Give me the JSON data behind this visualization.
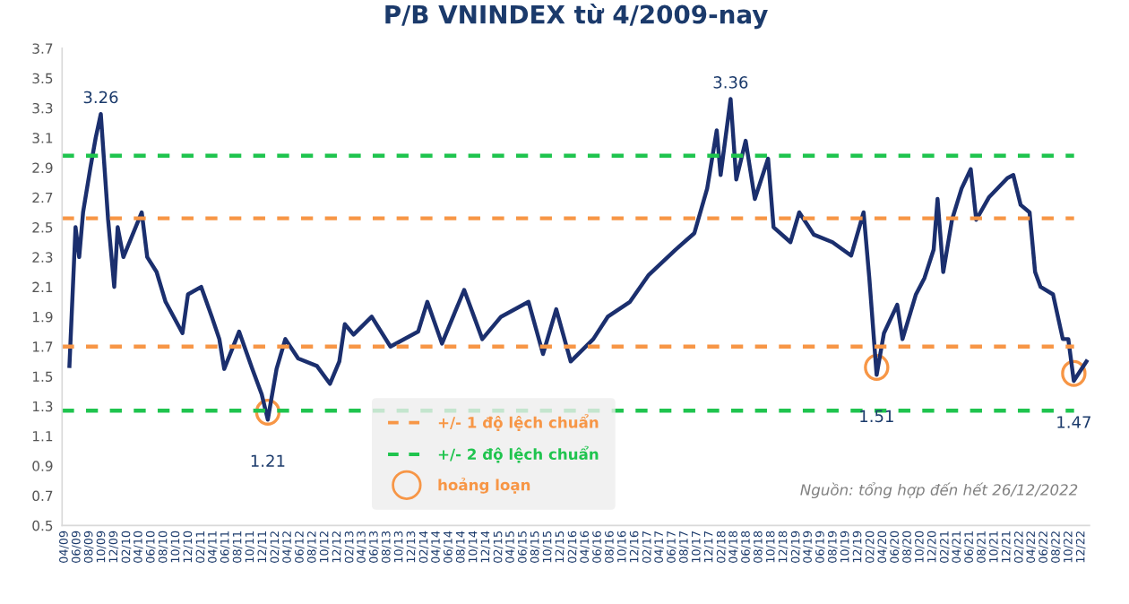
{
  "chart_data": {
    "type": "line",
    "title": "P/B VNINDEX từ 4/2009-nay",
    "x": [
      "2009-04-25",
      "2009-05-25",
      "2009-06-12",
      "2009-07-01",
      "2009-08-06",
      "2009-09-01",
      "2009-09-26",
      "2009-11-01",
      "2009-12-01",
      "2009-12-18",
      "2010-01-15",
      "2010-03-01",
      "2010-04-15",
      "2010-05-12",
      "2010-06-27",
      "2010-08-10",
      "2010-11-01",
      "2010-11-28",
      "2011-02-01",
      "2011-03-25",
      "2011-05-01",
      "2011-05-25",
      "2011-08-06",
      "2011-10-10",
      "2011-11-25",
      "2011-12-25",
      "2012-02-06",
      "2012-03-20",
      "2012-05-22",
      "2012-08-22",
      "2012-10-25",
      "2012-12-10",
      "2013-01-06",
      "2013-02-18",
      "2013-05-18",
      "2013-08-18",
      "2014-01-01",
      "2014-02-15",
      "2014-04-28",
      "2014-08-15",
      "2014-11-12",
      "2015-02-12",
      "2015-06-27",
      "2015-09-06",
      "2015-11-10",
      "2016-01-20",
      "2016-05-10",
      "2016-07-20",
      "2016-11-06",
      "2017-02-06",
      "2017-06-18",
      "2017-09-18",
      "2017-11-20",
      "2018-01-06",
      "2018-01-25",
      "2018-03-15",
      "2018-04-12",
      "2018-05-28",
      "2018-07-12",
      "2018-09-15",
      "2018-10-12",
      "2019-01-03",
      "2019-02-15",
      "2019-04-28",
      "2019-07-28",
      "2019-10-28",
      "2019-12-28",
      "2020-01-25",
      "2020-03-01",
      "2020-04-06",
      "2020-06-10",
      "2020-07-06",
      "2020-09-10",
      "2020-10-22",
      "2020-12-06",
      "2020-12-25",
      "2021-01-22",
      "2021-03-06",
      "2021-04-22",
      "2021-06-06",
      "2021-07-03",
      "2021-09-03",
      "2021-12-03",
      "2022-01-01",
      "2022-02-06",
      "2022-03-22",
      "2022-04-18",
      "2022-05-15",
      "2022-07-15",
      "2022-09-01",
      "2022-09-28",
      "2022-10-25",
      "2022-12-26"
    ],
    "series": [
      {
        "color": "#1b2f6e",
        "values": [
          1.57,
          2.5,
          2.3,
          2.6,
          2.9,
          3.1,
          3.26,
          2.55,
          2.1,
          2.5,
          2.3,
          2.45,
          2.6,
          2.3,
          2.2,
          2.0,
          1.79,
          2.05,
          2.1,
          1.9,
          1.75,
          1.55,
          1.8,
          1.55,
          1.38,
          1.21,
          1.55,
          1.75,
          1.62,
          1.57,
          1.45,
          1.6,
          1.85,
          1.78,
          1.9,
          1.7,
          1.8,
          2.0,
          1.72,
          2.08,
          1.75,
          1.9,
          2.0,
          1.65,
          1.95,
          1.6,
          1.75,
          1.9,
          2.0,
          2.18,
          2.35,
          2.46,
          2.76,
          3.15,
          2.85,
          3.36,
          2.82,
          3.08,
          2.69,
          2.96,
          2.5,
          2.4,
          2.6,
          2.45,
          2.4,
          2.31,
          2.6,
          2.16,
          1.51,
          1.79,
          1.98,
          1.75,
          2.05,
          2.16,
          2.35,
          2.69,
          2.2,
          2.55,
          2.76,
          2.89,
          2.55,
          2.7,
          2.83,
          2.85,
          2.65,
          2.6,
          2.2,
          2.1,
          2.05,
          1.75,
          1.75,
          1.47,
          1.6
        ]
      }
    ],
    "xlim": [
      "2009-03-20",
      "2023-01-10"
    ],
    "ylim": [
      0.5,
      3.7
    ],
    "yticks": [
      {
        "value": 0.5,
        "label": "0.5"
      },
      {
        "value": 0.7,
        "label": "0.7"
      },
      {
        "value": 0.9,
        "label": "0.9"
      },
      {
        "value": 1.1,
        "label": "1.1"
      },
      {
        "value": 1.3,
        "label": "1.3"
      },
      {
        "value": 1.5,
        "label": "1.5"
      },
      {
        "value": 1.7,
        "label": "1.7"
      },
      {
        "value": 1.9,
        "label": "1.9"
      },
      {
        "value": 2.1,
        "label": "2.1"
      },
      {
        "value": 2.3,
        "label": "2.3"
      },
      {
        "value": 2.5,
        "label": "2.5"
      },
      {
        "value": 2.7,
        "label": "2.7"
      },
      {
        "value": 2.9,
        "label": "2.9"
      },
      {
        "value": 3.1,
        "label": "3.1"
      },
      {
        "value": 3.3,
        "label": "3.3"
      },
      {
        "value": 3.5,
        "label": "3.5"
      },
      {
        "value": 3.7,
        "label": "3.7"
      }
    ],
    "xticks": [
      {
        "value": "2009-04",
        "label": "04/09"
      },
      {
        "value": "2009-06",
        "label": "06/09"
      },
      {
        "value": "2009-08",
        "label": "08/09"
      },
      {
        "value": "2009-10",
        "label": "10/09"
      },
      {
        "value": "2009-12",
        "label": "12/09"
      },
      {
        "value": "2010-02",
        "label": "02/10"
      },
      {
        "value": "2010-04",
        "label": "04/10"
      },
      {
        "value": "2010-06",
        "label": "06/10"
      },
      {
        "value": "2010-08",
        "label": "08/10"
      },
      {
        "value": "2010-10",
        "label": "10/10"
      },
      {
        "value": "2010-12",
        "label": "12/10"
      },
      {
        "value": "2011-02",
        "label": "02/11"
      },
      {
        "value": "2011-04",
        "label": "04/11"
      },
      {
        "value": "2011-06",
        "label": "06/11"
      },
      {
        "value": "2011-08",
        "label": "08/11"
      },
      {
        "value": "2011-10",
        "label": "10/11"
      },
      {
        "value": "2011-12",
        "label": "12/11"
      },
      {
        "value": "2012-02",
        "label": "02/12"
      },
      {
        "value": "2012-04",
        "label": "04/12"
      },
      {
        "value": "2012-06",
        "label": "06/12"
      },
      {
        "value": "2012-08",
        "label": "08/12"
      },
      {
        "value": "2012-10",
        "label": "10/12"
      },
      {
        "value": "2012-12",
        "label": "12/12"
      },
      {
        "value": "2013-02",
        "label": "02/13"
      },
      {
        "value": "2013-04",
        "label": "04/13"
      },
      {
        "value": "2013-06",
        "label": "06/13"
      },
      {
        "value": "2013-08",
        "label": "08/13"
      },
      {
        "value": "2013-10",
        "label": "10/13"
      },
      {
        "value": "2013-12",
        "label": "12/13"
      },
      {
        "value": "2014-02",
        "label": "02/14"
      },
      {
        "value": "2014-04",
        "label": "04/14"
      },
      {
        "value": "2014-06",
        "label": "06/14"
      },
      {
        "value": "2014-08",
        "label": "08/14"
      },
      {
        "value": "2014-10",
        "label": "10/14"
      },
      {
        "value": "2014-12",
        "label": "12/14"
      },
      {
        "value": "2015-02",
        "label": "02/15"
      },
      {
        "value": "2015-04",
        "label": "04/15"
      },
      {
        "value": "2015-06",
        "label": "06/15"
      },
      {
        "value": "2015-08",
        "label": "08/15"
      },
      {
        "value": "2015-10",
        "label": "10/15"
      },
      {
        "value": "2015-12",
        "label": "12/15"
      },
      {
        "value": "2016-02",
        "label": "02/16"
      },
      {
        "value": "2016-04",
        "label": "04/16"
      },
      {
        "value": "2016-06",
        "label": "06/16"
      },
      {
        "value": "2016-08",
        "label": "08/16"
      },
      {
        "value": "2016-10",
        "label": "10/16"
      },
      {
        "value": "2016-12",
        "label": "12/16"
      },
      {
        "value": "2017-02",
        "label": "02/17"
      },
      {
        "value": "2017-04",
        "label": "04/17"
      },
      {
        "value": "2017-06",
        "label": "06/17"
      },
      {
        "value": "2017-08",
        "label": "08/17"
      },
      {
        "value": "2017-10",
        "label": "10/17"
      },
      {
        "value": "2017-12",
        "label": "12/17"
      },
      {
        "value": "2018-02",
        "label": "02/18"
      },
      {
        "value": "2018-04",
        "label": "04/18"
      },
      {
        "value": "2018-06",
        "label": "06/18"
      },
      {
        "value": "2018-08",
        "label": "08/18"
      },
      {
        "value": "2018-10",
        "label": "10/18"
      },
      {
        "value": "2018-12",
        "label": "12/18"
      },
      {
        "value": "2019-02",
        "label": "02/19"
      },
      {
        "value": "2019-04",
        "label": "04/19"
      },
      {
        "value": "2019-06",
        "label": "06/19"
      },
      {
        "value": "2019-08",
        "label": "08/19"
      },
      {
        "value": "2019-10",
        "label": "10/19"
      },
      {
        "value": "2019-12",
        "label": "12/19"
      },
      {
        "value": "2020-02",
        "label": "02/20"
      },
      {
        "value": "2020-04",
        "label": "04/20"
      },
      {
        "value": "2020-06",
        "label": "06/20"
      },
      {
        "value": "2020-08",
        "label": "08/20"
      },
      {
        "value": "2020-10",
        "label": "10/20"
      },
      {
        "value": "2020-12",
        "label": "12/20"
      },
      {
        "value": "2021-02",
        "label": "02/21"
      },
      {
        "value": "2021-04",
        "label": "04/21"
      },
      {
        "value": "2021-06",
        "label": "06/21"
      },
      {
        "value": "2021-08",
        "label": "08/21"
      },
      {
        "value": "2021-10",
        "label": "10/21"
      },
      {
        "value": "2021-12",
        "label": "12/21"
      },
      {
        "value": "2022-02",
        "label": "02/22"
      },
      {
        "value": "2022-04",
        "label": "04/22"
      },
      {
        "value": "2022-06",
        "label": "06/22"
      },
      {
        "value": "2022-08",
        "label": "08/22"
      },
      {
        "value": "2022-10",
        "label": "10/22"
      },
      {
        "value": "2022-12",
        "label": "12/22"
      }
    ],
    "ref_lines": [
      {
        "axis": "y",
        "value": 2.56,
        "label": "+/- 1 độ lệch chuẩn",
        "color": "#f79646",
        "line_style": "dashed"
      },
      {
        "axis": "y",
        "value": 1.7,
        "label": null,
        "color": "#f79646",
        "line_style": "dashed"
      },
      {
        "axis": "y",
        "value": 2.98,
        "label": "+/- 2 độ lệch chuẩn",
        "color": "#1fc44e",
        "line_style": "dashed"
      },
      {
        "axis": "y",
        "value": 1.27,
        "label": null,
        "color": "#1fc44e",
        "line_style": "dashed"
      }
    ],
    "annotations": [
      {
        "text": "3.26",
        "x": "2009-09-26",
        "y": 3.26
      },
      {
        "text": "3.36",
        "x": "2018-03-15",
        "y": 3.36
      },
      {
        "text": "1.21",
        "x": "2011-12-25",
        "y": 1.21
      },
      {
        "text": "1.51",
        "x": "2020-03-01",
        "y": 1.51
      },
      {
        "text": "1.47",
        "x": "2022-10-25",
        "y": 1.47
      },
      "hoảng loạn",
      "Nguồn: tổng hợp đến hết 26/12/2022"
    ],
    "legend": "bottom",
    "grid": false,
    "marker": "none",
    "line_style": "solid"
  }
}
